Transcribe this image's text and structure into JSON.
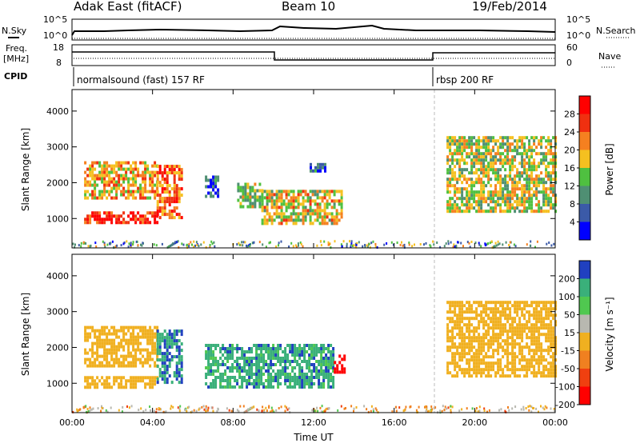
{
  "header": {
    "station": "Adak East (fitACF)",
    "beam": "Beam 10",
    "date": "19/Feb/2014"
  },
  "labels": {
    "nsky": "N.Sky",
    "freq_line1": "Freq.",
    "freq_line2": "[MHz]",
    "cpid": "CPID",
    "nsearch": "N.Search",
    "nave": "Nave",
    "ylabel": "Slant Range [km]",
    "xlabel": "Time UT",
    "power_label": "Power [dB]",
    "velocity_label": "Velocity [m s⁻¹]"
  },
  "noise_panel": {
    "ticks_left": [
      "10^5",
      "10^0"
    ],
    "ticks_right": [
      "10^5",
      "10^0"
    ]
  },
  "freq_panel": {
    "ticks_left": [
      "18",
      "8"
    ],
    "ticks_right": [
      "60",
      "0"
    ]
  },
  "cpid_panel": {
    "segments": [
      {
        "label": "normalsound (fast) 157 RF",
        "start_hr": 0,
        "end_hr": 18
      },
      {
        "label": "rbsp 200 RF",
        "start_hr": 18,
        "end_hr": 24
      }
    ]
  },
  "chart_data": [
    {
      "type": "heatmap",
      "title": "",
      "xlabel": "Time UT",
      "ylabel": "Slant Range [km]",
      "xlim": [
        0,
        24
      ],
      "ylim": [
        180,
        4600
      ],
      "x_ticks": [
        "00:00",
        "04:00",
        "08:00",
        "12:00",
        "16:00",
        "20:00",
        "00:00"
      ],
      "y_ticks": [
        1000,
        2000,
        3000,
        4000
      ],
      "colorbar": {
        "label": "Power [dB]",
        "ticks": [
          4,
          8,
          12,
          16,
          20,
          24,
          28
        ],
        "colors": [
          "#0000ff",
          "#3b5aa8",
          "#4f8f73",
          "#4fc040",
          "#f5c020",
          "#f58020",
          "#f03010",
          "#ff0000"
        ]
      },
      "regions": [
        {
          "t0": 0.6,
          "t1": 4.2,
          "r0": 1600,
          "r1": 2600,
          "value": 20
        },
        {
          "t0": 0.6,
          "t1": 4.2,
          "r0": 850,
          "r1": 1200,
          "value": 28
        },
        {
          "t0": 4.2,
          "t1": 5.4,
          "r0": 1000,
          "r1": 2500,
          "value": 24
        },
        {
          "t0": 6.6,
          "t1": 7.2,
          "r0": 1600,
          "r1": 2200,
          "value": 6
        },
        {
          "t0": 8.2,
          "t1": 9.4,
          "r0": 1300,
          "r1": 2000,
          "value": 14
        },
        {
          "t0": 9.4,
          "t1": 13.4,
          "r0": 850,
          "r1": 1800,
          "value": 18
        },
        {
          "t0": 11.8,
          "t1": 12.6,
          "r0": 2300,
          "r1": 2550,
          "value": 6
        },
        {
          "t0": 18.6,
          "t1": 24,
          "r0": 1200,
          "r1": 3300,
          "value": 16
        }
      ]
    },
    {
      "type": "heatmap",
      "title": "",
      "xlabel": "Time UT",
      "ylabel": "Slant Range [km]",
      "xlim": [
        0,
        24
      ],
      "ylim": [
        180,
        4600
      ],
      "x_ticks": [
        "00:00",
        "04:00",
        "08:00",
        "12:00",
        "16:00",
        "20:00",
        "00:00"
      ],
      "y_ticks": [
        1000,
        2000,
        3000,
        4000
      ],
      "colorbar": {
        "label": "Velocity [m s⁻¹]",
        "ticks": [
          200,
          100,
          50,
          15,
          -15,
          -50,
          -100,
          -200
        ],
        "colors": [
          "#2040c0",
          "#3ab07a",
          "#50c850",
          "#b8b8b0",
          "#f0b020",
          "#f08020",
          "#f04010",
          "#ff0000"
        ]
      },
      "regions": [
        {
          "t0": 0.6,
          "t1": 4.2,
          "r0": 1500,
          "r1": 2600,
          "value": 0
        },
        {
          "t0": 0.6,
          "t1": 4.2,
          "r0": 850,
          "r1": 1200,
          "value": 0
        },
        {
          "t0": 4.2,
          "t1": 5.4,
          "r0": 1000,
          "r1": 2500,
          "value": 180
        },
        {
          "t0": 6.6,
          "t1": 13.0,
          "r0": 900,
          "r1": 2100,
          "value": 150
        },
        {
          "t0": 13.0,
          "t1": 13.5,
          "r0": 1300,
          "r1": 1800,
          "value": -200
        },
        {
          "t0": 18.6,
          "t1": 24,
          "r0": 1200,
          "r1": 3300,
          "value": 0
        }
      ]
    }
  ]
}
